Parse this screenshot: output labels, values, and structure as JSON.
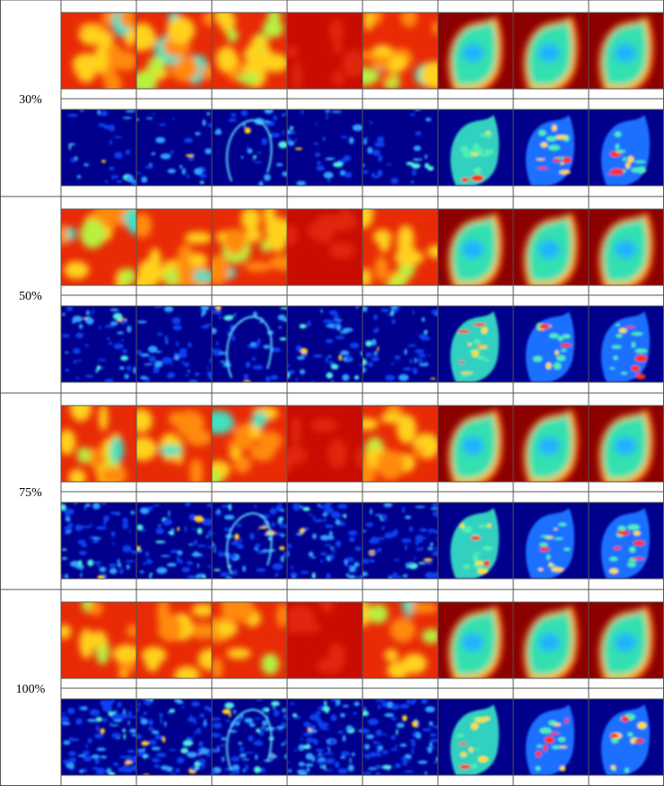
{
  "rows": [
    {
      "label": "30%"
    },
    {
      "label": "50%"
    },
    {
      "label": "75%"
    },
    {
      "label": "100%"
    }
  ]
}
